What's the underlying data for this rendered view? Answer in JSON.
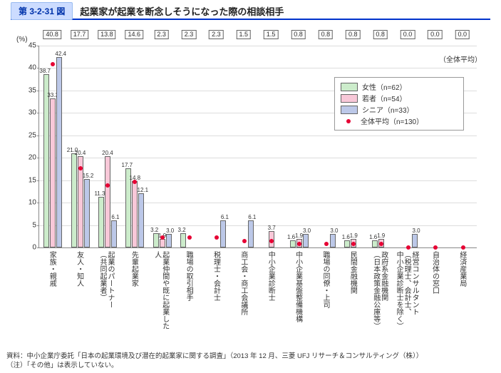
{
  "header": {
    "figure_id": "第 3-2-31 図",
    "title": "起業家が起業を断念しそうになった際の相談相手"
  },
  "chart": {
    "type": "bar",
    "y_unit": "(%)",
    "ylim": [
      0,
      45
    ],
    "ytick_step": 5,
    "background_color": "#ffffff",
    "grid_color": "#dddddd",
    "axis_color": "#888888",
    "bar_colors": {
      "female": "#cceccb",
      "youth": "#f8c8d8",
      "senior": "#bcc8e8"
    },
    "dot_color": "#e60033",
    "legend": {
      "avg_row_label": "（全体平均）",
      "items": [
        {
          "key": "female",
          "label": "女性（n=62）"
        },
        {
          "key": "youth",
          "label": "若者（n=54）"
        },
        {
          "key": "senior",
          "label": "シニア（n=33）"
        },
        {
          "key": "avg",
          "label": "全体平均（n=130）"
        }
      ]
    },
    "categories": [
      {
        "label": "家族・親戚",
        "female": 38.7,
        "youth": 33.3,
        "senior": 42.4,
        "avg": 40.8
      },
      {
        "label": "友人・知人",
        "female": 21.0,
        "youth": 20.4,
        "senior": 15.2,
        "avg": 17.7
      },
      {
        "label": "起業のパートナー\n（共同起業者）",
        "female": 11.3,
        "youth": 20.4,
        "senior": 6.1,
        "avg": 13.8
      },
      {
        "label": "先輩起業家",
        "female": 17.7,
        "youth": 14.8,
        "senior": 12.1,
        "avg": 14.6
      },
      {
        "label": "起業仲間や既に起業した\n人",
        "female": 3.2,
        "youth": 1.9,
        "senior": 3.0,
        "avg": 2.3
      },
      {
        "label": "職場の取引相手",
        "female": 3.2,
        "youth": null,
        "senior": null,
        "avg": 2.3
      },
      {
        "label": "税理士・会計士",
        "female": null,
        "youth": null,
        "senior": 6.1,
        "avg": 2.3
      },
      {
        "label": "商工会・商工会議所",
        "female": null,
        "youth": null,
        "senior": 6.1,
        "avg": 1.5
      },
      {
        "label": "中小企業診断士",
        "female": null,
        "youth": 3.7,
        "senior": null,
        "avg": 1.5
      },
      {
        "label": "中小企業基盤整備機構",
        "female": 1.6,
        "youth": 1.9,
        "senior": 3.0,
        "avg": 0.8
      },
      {
        "label": "職場の同僚・上司",
        "female": null,
        "youth": null,
        "senior": 3.0,
        "avg": 0.8
      },
      {
        "label": "民間金融機関",
        "female": 1.6,
        "youth": 1.9,
        "senior": null,
        "avg": 0.8
      },
      {
        "label": "政府系金融機関\n（日本政策金融公庫等）",
        "female": 1.6,
        "youth": 1.9,
        "senior": null,
        "avg": 0.8
      },
      {
        "label": "経営コンサルタント\n（税理士、会計士、\n中小企業診断士を除く）",
        "female": null,
        "youth": null,
        "senior": 3.0,
        "avg": 0.0
      },
      {
        "label": "自治体の窓口",
        "female": null,
        "youth": null,
        "senior": null,
        "avg": 0.0
      },
      {
        "label": "経済産業局",
        "female": null,
        "youth": null,
        "senior": null,
        "avg": 0.0
      }
    ]
  },
  "footnotes": [
    "資料：中小企業庁委託「日本の起業環境及び潜在的起業家に関する調査」（2013 年 12 月、三菱 UFJ リサーチ＆コンサルティング（株））",
    "（注）「その他」は表示していない。"
  ]
}
